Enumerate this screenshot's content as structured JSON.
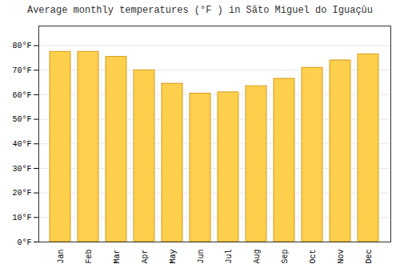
{
  "chart_data": {
    "type": "bar",
    "title": "Average monthly temperatures (°F ) in Sãto Miguel do Iguaçûu",
    "categories": [
      "Jan",
      "Feb",
      "Mar",
      "Apr",
      "May",
      "Jun",
      "Jul",
      "Aug",
      "Sep",
      "Oct",
      "Nov",
      "Dec"
    ],
    "values": [
      77.5,
      77.5,
      75.5,
      70.0,
      64.5,
      60.5,
      61.0,
      63.5,
      66.5,
      71.0,
      74.0,
      76.5
    ],
    "color": "#FFD04D",
    "ylim": [
      0,
      88
    ],
    "yticks": [
      {
        "value": 0,
        "label": "0°F"
      },
      {
        "value": 10,
        "label": "10°F"
      },
      {
        "value": 20,
        "label": "20°F"
      },
      {
        "value": 30,
        "label": "30°F"
      },
      {
        "value": 40,
        "label": "40°F"
      },
      {
        "value": 50,
        "label": "50°F"
      },
      {
        "value": 60,
        "label": "60°F"
      },
      {
        "value": 70,
        "label": "70°F"
      },
      {
        "value": 80,
        "label": "80°F"
      }
    ],
    "grid": true
  }
}
